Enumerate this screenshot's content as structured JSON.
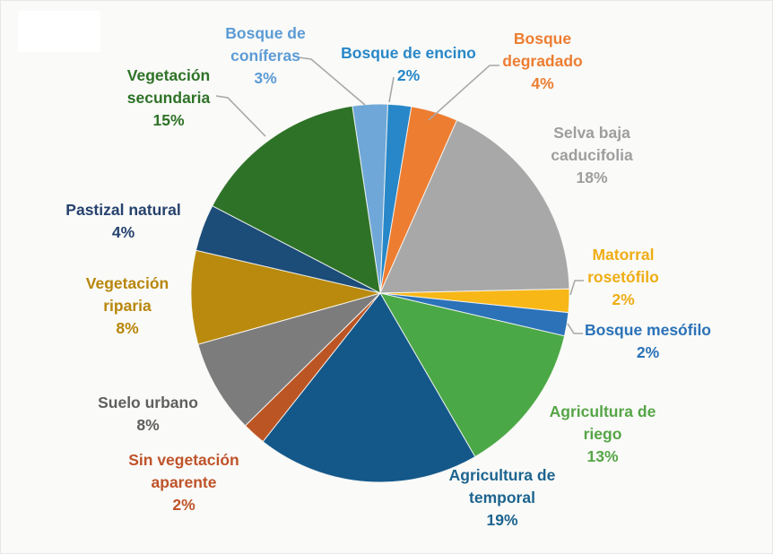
{
  "page": {
    "background_color": "#FAFAF8",
    "title": ""
  },
  "chart_data": {
    "type": "pie",
    "title": "",
    "legend": "none",
    "start_angle_deg": -8.5,
    "direction": "clockwise",
    "labels_style": "outside, colored to match slice, some with gray leader lines",
    "total_pct": 100,
    "slices": [
      {
        "label": "Bosque de coníferas",
        "pct_label": "3%",
        "value": 3,
        "color": "#6FA8D8",
        "label_color": "#5B9BD5"
      },
      {
        "label": "Bosque de encino",
        "pct_label": "2%",
        "value": 2,
        "color": "#2787C8",
        "label_color": "#2787C8"
      },
      {
        "label": "Bosque degradado",
        "pct_label": "4%",
        "value": 4,
        "color": "#ED7D31",
        "label_color": "#ED7D31"
      },
      {
        "label": "Selva baja caducifolia",
        "pct_label": "18%",
        "value": 18,
        "color": "#A8A8A8",
        "label_color": "#9E9E9E"
      },
      {
        "label": "Matorral rosetófilo",
        "pct_label": "2%",
        "value": 2,
        "color": "#F7B717",
        "label_color": "#EFAD15"
      },
      {
        "label": "Bosque mesófilo",
        "pct_label": "2%",
        "value": 2,
        "color": "#2B72B8",
        "label_color": "#2B72B8"
      },
      {
        "label": "Agricultura de riego",
        "pct_label": "13%",
        "value": 13,
        "color": "#4BA846",
        "label_color": "#55A546"
      },
      {
        "label": "Agricultura de temporal",
        "pct_label": "19%",
        "value": 19,
        "color": "#14588A",
        "label_color": "#1C648F"
      },
      {
        "label": "Sin vegetación aparente",
        "pct_label": "2%",
        "value": 2,
        "color": "#BC5524",
        "label_color": "#BF5329"
      },
      {
        "label": "Suelo urbano",
        "pct_label": "8%",
        "value": 8,
        "color": "#7C7C7C",
        "label_color": "#5F5F5F"
      },
      {
        "label": "Vegetación riparia",
        "pct_label": "8%",
        "value": 8,
        "color": "#B98A0D",
        "label_color": "#B8860B"
      },
      {
        "label": "Pastizal natural",
        "pct_label": "4%",
        "value": 4,
        "color": "#1C4C78",
        "label_color": "#26426E"
      },
      {
        "label": "Vegetación secundaria",
        "pct_label": "15%",
        "value": 15,
        "color": "#2E7227",
        "label_color": "#2E7227"
      }
    ],
    "leader_line_color": "#A8A8A8"
  }
}
